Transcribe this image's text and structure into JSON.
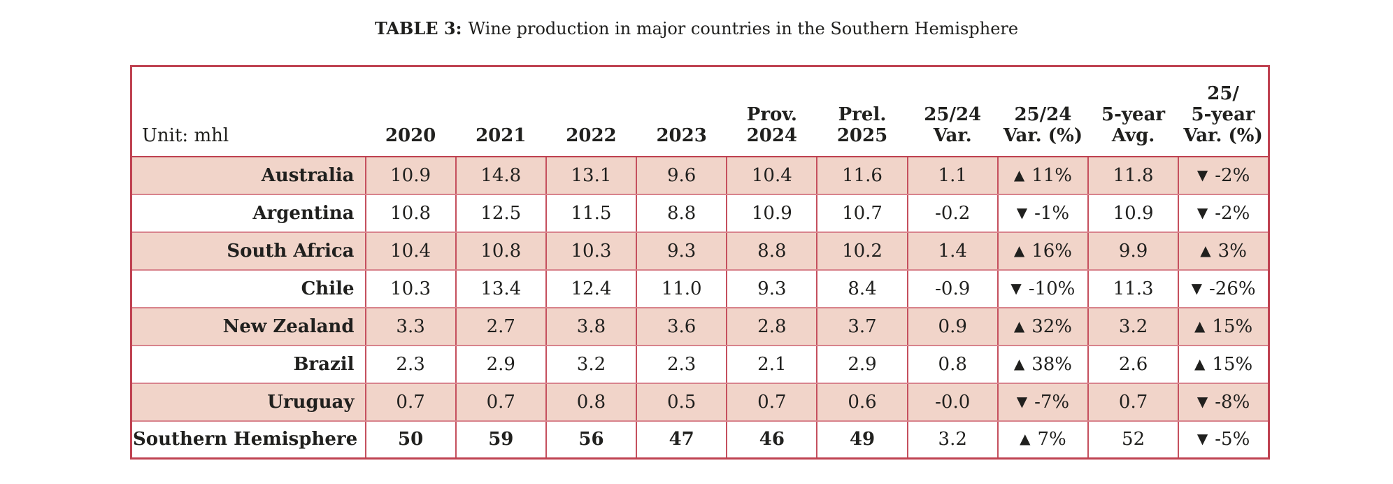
{
  "title": {
    "prefix": "TABLE 3:",
    "text": "Wine production in major countries in the Southern Hemisphere"
  },
  "icons": {
    "up": "▲",
    "down": "▼"
  },
  "colors": {
    "row_pink": "#f1d4c9",
    "border_strong": "#bf4251",
    "border_soft": "#d8838c",
    "text": "#20201e"
  },
  "chart_data": {
    "type": "table",
    "unit_label": "Unit: mhl",
    "columns": [
      "2020",
      "2021",
      "2022",
      "2023",
      "Prov.\n2024",
      "Prel.\n2025",
      "25/24\nVar.",
      "25/24\nVar. (%)",
      "5-year\nAvg.",
      "25/\n5-year\nVar. (%)"
    ],
    "rows": [
      {
        "country": "Australia",
        "values": [
          "10.9",
          "14.8",
          "13.1",
          "9.6",
          "10.4",
          "11.6",
          "1.1"
        ],
        "var_pct": {
          "dir": "up",
          "label": "11%"
        },
        "avg": "11.8",
        "var5": {
          "dir": "down",
          "label": "-2%"
        },
        "emphasis": false
      },
      {
        "country": "Argentina",
        "values": [
          "10.8",
          "12.5",
          "11.5",
          "8.8",
          "10.9",
          "10.7",
          "-0.2"
        ],
        "var_pct": {
          "dir": "down",
          "label": "-1%"
        },
        "avg": "10.9",
        "var5": {
          "dir": "down",
          "label": "-2%"
        },
        "emphasis": false
      },
      {
        "country": "South Africa",
        "values": [
          "10.4",
          "10.8",
          "10.3",
          "9.3",
          "8.8",
          "10.2",
          "1.4"
        ],
        "var_pct": {
          "dir": "up",
          "label": "16%"
        },
        "avg": "9.9",
        "var5": {
          "dir": "up",
          "label": "3%"
        },
        "emphasis": false
      },
      {
        "country": "Chile",
        "values": [
          "10.3",
          "13.4",
          "12.4",
          "11.0",
          "9.3",
          "8.4",
          "-0.9"
        ],
        "var_pct": {
          "dir": "down",
          "label": "-10%"
        },
        "avg": "11.3",
        "var5": {
          "dir": "down",
          "label": "-26%"
        },
        "emphasis": false
      },
      {
        "country": "New Zealand",
        "values": [
          "3.3",
          "2.7",
          "3.8",
          "3.6",
          "2.8",
          "3.7",
          "0.9"
        ],
        "var_pct": {
          "dir": "up",
          "label": "32%"
        },
        "avg": "3.2",
        "var5": {
          "dir": "up",
          "label": "15%"
        },
        "emphasis": false
      },
      {
        "country": "Brazil",
        "values": [
          "2.3",
          "2.9",
          "3.2",
          "2.3",
          "2.1",
          "2.9",
          "0.8"
        ],
        "var_pct": {
          "dir": "up",
          "label": "38%"
        },
        "avg": "2.6",
        "var5": {
          "dir": "up",
          "label": "15%"
        },
        "emphasis": false
      },
      {
        "country": "Uruguay",
        "values": [
          "0.7",
          "0.7",
          "0.8",
          "0.5",
          "0.7",
          "0.6",
          "-0.0"
        ],
        "var_pct": {
          "dir": "down",
          "label": "-7%"
        },
        "avg": "0.7",
        "var5": {
          "dir": "down",
          "label": "-8%"
        },
        "emphasis": false
      },
      {
        "country": "Southern Hemisphere",
        "values": [
          "50",
          "59",
          "56",
          "47",
          "46",
          "49",
          "3.2"
        ],
        "var_pct": {
          "dir": "up",
          "label": "7%"
        },
        "avg": "52",
        "var5": {
          "dir": "down",
          "label": "-5%"
        },
        "emphasis": true
      }
    ]
  }
}
